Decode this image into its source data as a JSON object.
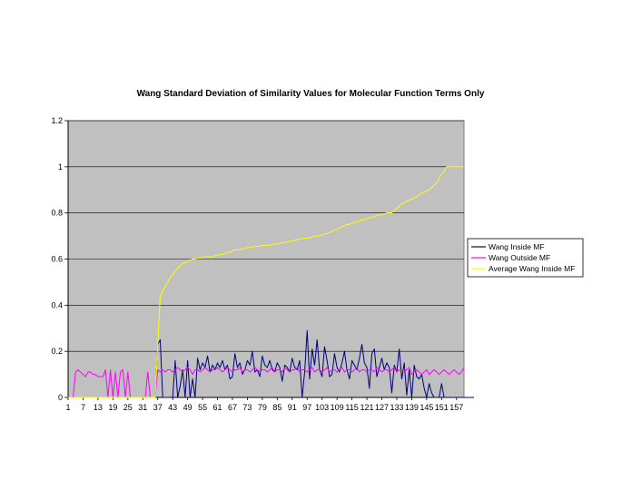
{
  "chart_data": {
    "type": "line",
    "title": "Wang Standard Deviation of Similarity Values for Molecular Function Terms Only",
    "xlabel": "",
    "ylabel": "",
    "x_range": [
      1,
      160
    ],
    "x_tick_labels": [
      "1",
      "7",
      "13",
      "19",
      "25",
      "31",
      "37",
      "43",
      "49",
      "55",
      "61",
      "67",
      "73",
      "79",
      "85",
      "91",
      "97",
      "103",
      "109",
      "115",
      "121",
      "127",
      "133",
      "139",
      "145",
      "151",
      "157"
    ],
    "ylim": [
      0,
      1.2
    ],
    "y_tick_labels": [
      "0",
      "0.2",
      "0.4",
      "0.6",
      "0.8",
      "1",
      "1.2"
    ],
    "y_ticks": [
      0,
      0.2,
      0.4,
      0.6,
      0.8,
      1,
      1.2
    ],
    "grid": "horizontal",
    "plot_background": "#c0c0c0",
    "legend_position": "right",
    "series": [
      {
        "name": "Wang Inside MF",
        "color": "#000080",
        "values": [
          0,
          0,
          0,
          0,
          0,
          0,
          0,
          0,
          0,
          0,
          0,
          0,
          0,
          0,
          0,
          0,
          0,
          0,
          0,
          0,
          0,
          0,
          0,
          0,
          0,
          0,
          0,
          0,
          0,
          0,
          0,
          0,
          0,
          0,
          0,
          0,
          0.23,
          0.25,
          0,
          0,
          0,
          0,
          0,
          0.16,
          0,
          0.05,
          0.12,
          0,
          0.16,
          0,
          0.08,
          0,
          0.17,
          0.12,
          0.15,
          0.13,
          0.18,
          0.11,
          0.14,
          0.12,
          0.15,
          0.13,
          0.16,
          0.12,
          0.14,
          0.08,
          0.09,
          0.19,
          0.13,
          0.15,
          0.1,
          0.12,
          0.16,
          0.14,
          0.2,
          0.11,
          0.12,
          0.09,
          0.18,
          0.14,
          0.13,
          0.16,
          0.12,
          0.11,
          0.15,
          0.13,
          0.07,
          0.14,
          0.13,
          0.11,
          0.17,
          0.13,
          0.12,
          0.16,
          0,
          0.11,
          0.29,
          0.08,
          0.21,
          0.14,
          0.25,
          0.12,
          0.09,
          0.22,
          0.16,
          0.09,
          0.1,
          0.19,
          0.13,
          0.11,
          0.15,
          0.2,
          0.12,
          0.08,
          0.16,
          0.14,
          0.12,
          0.17,
          0.23,
          0.15,
          0.13,
          0.04,
          0.19,
          0.21,
          0.09,
          0.13,
          0.17,
          0.12,
          0.15,
          0.13,
          0.02,
          0.14,
          0.11,
          0.21,
          0.08,
          0.15,
          0.01,
          0.12,
          0,
          0.14,
          0.09,
          0.08,
          0.1,
          0.04,
          0,
          0.06,
          0.02,
          0,
          0,
          0,
          0.06,
          0,
          0,
          0,
          0,
          0,
          0,
          0,
          0,
          0,
          0,
          0,
          0,
          0
        ]
      },
      {
        "name": "Wang Outside MF",
        "color": "#ff00ff",
        "values": [
          0,
          0,
          0,
          0.11,
          0.12,
          0.11,
          0.1,
          0.09,
          0.11,
          0.11,
          0.1,
          0.1,
          0.09,
          0.09,
          0.09,
          0.12,
          0,
          0.12,
          0,
          0.11,
          0,
          0.11,
          0.12,
          0,
          0.11,
          0,
          0,
          0,
          0,
          0,
          0,
          0,
          0.11,
          0,
          0,
          0,
          0.12,
          0.11,
          0.12,
          0.11,
          0.12,
          0.12,
          0.11,
          0.12,
          0.13,
          0.12,
          0.11,
          0.12,
          0.13,
          0.12,
          0.1,
          0.12,
          0.12,
          0.11,
          0.12,
          0.13,
          0.12,
          0.11,
          0.12,
          0.12,
          0.13,
          0.12,
          0.11,
          0.12,
          0.13,
          0.12,
          0.11,
          0.12,
          0.12,
          0.13,
          0.11,
          0.12,
          0.12,
          0.11,
          0.12,
          0.13,
          0.12,
          0.11,
          0.12,
          0.12,
          0.11,
          0.12,
          0.13,
          0.11,
          0.12,
          0.12,
          0.11,
          0.13,
          0.12,
          0.11,
          0.12,
          0.12,
          0.13,
          0.11,
          0.12,
          0.12,
          0.11,
          0.12,
          0.13,
          0.11,
          0.12,
          0.12,
          0.11,
          0.12,
          0.13,
          0.11,
          0.12,
          0.12,
          0.11,
          0.12,
          0.13,
          0.11,
          0.12,
          0.12,
          0.11,
          0.12,
          0.13,
          0.11,
          0.12,
          0.12,
          0.11,
          0.12,
          0.12,
          0.11,
          0.13,
          0.12,
          0.11,
          0.12,
          0.12,
          0.11,
          0.12,
          0.13,
          0.11,
          0.12,
          0.12,
          0.11,
          0.12,
          0.13,
          0.1,
          0.11,
          0.12,
          0.11,
          0.1,
          0.11,
          0.12,
          0.1,
          0.11,
          0.12,
          0.11,
          0.1,
          0.11,
          0.12,
          0.11,
          0.1,
          0.11,
          0.12,
          0.11,
          0.1,
          0.11,
          0.13
        ]
      },
      {
        "name": "Average Wang Inside MF",
        "color": "#ffff00",
        "values": [
          0,
          0,
          0,
          0,
          0,
          0,
          0,
          0,
          0,
          0,
          0,
          0,
          0,
          0,
          0,
          0,
          0,
          0,
          0,
          0,
          0,
          0,
          0,
          0,
          0,
          0,
          0,
          0,
          0,
          0,
          0,
          0,
          0,
          0,
          0,
          0,
          0.23,
          0.44,
          0.46,
          0.48,
          0.5,
          0.52,
          0.53,
          0.55,
          0.56,
          0.57,
          0.58,
          0.585,
          0.59,
          0.595,
          0.6,
          0.6,
          0.605,
          0.605,
          0.605,
          0.61,
          0.61,
          0.61,
          0.61,
          0.615,
          0.615,
          0.62,
          0.62,
          0.625,
          0.63,
          0.63,
          0.635,
          0.64,
          0.64,
          0.64,
          0.645,
          0.645,
          0.65,
          0.65,
          0.65,
          0.655,
          0.655,
          0.655,
          0.66,
          0.66,
          0.66,
          0.66,
          0.665,
          0.665,
          0.665,
          0.67,
          0.67,
          0.67,
          0.675,
          0.675,
          0.68,
          0.68,
          0.685,
          0.685,
          0.69,
          0.69,
          0.69,
          0.695,
          0.695,
          0.7,
          0.7,
          0.7,
          0.705,
          0.71,
          0.71,
          0.715,
          0.72,
          0.725,
          0.73,
          0.735,
          0.74,
          0.745,
          0.75,
          0.75,
          0.755,
          0.76,
          0.76,
          0.765,
          0.77,
          0.77,
          0.775,
          0.78,
          0.78,
          0.785,
          0.79,
          0.79,
          0.795,
          0.795,
          0.8,
          0.8,
          0.8,
          0.81,
          0.82,
          0.83,
          0.84,
          0.845,
          0.85,
          0.855,
          0.86,
          0.865,
          0.87,
          0.88,
          0.885,
          0.89,
          0.895,
          0.9,
          0.91,
          0.92,
          0.93,
          0.95,
          0.97,
          0.98,
          1.0,
          1.0,
          1.0,
          1.0,
          1.0,
          1.0,
          1.0,
          1.0
        ]
      }
    ]
  }
}
